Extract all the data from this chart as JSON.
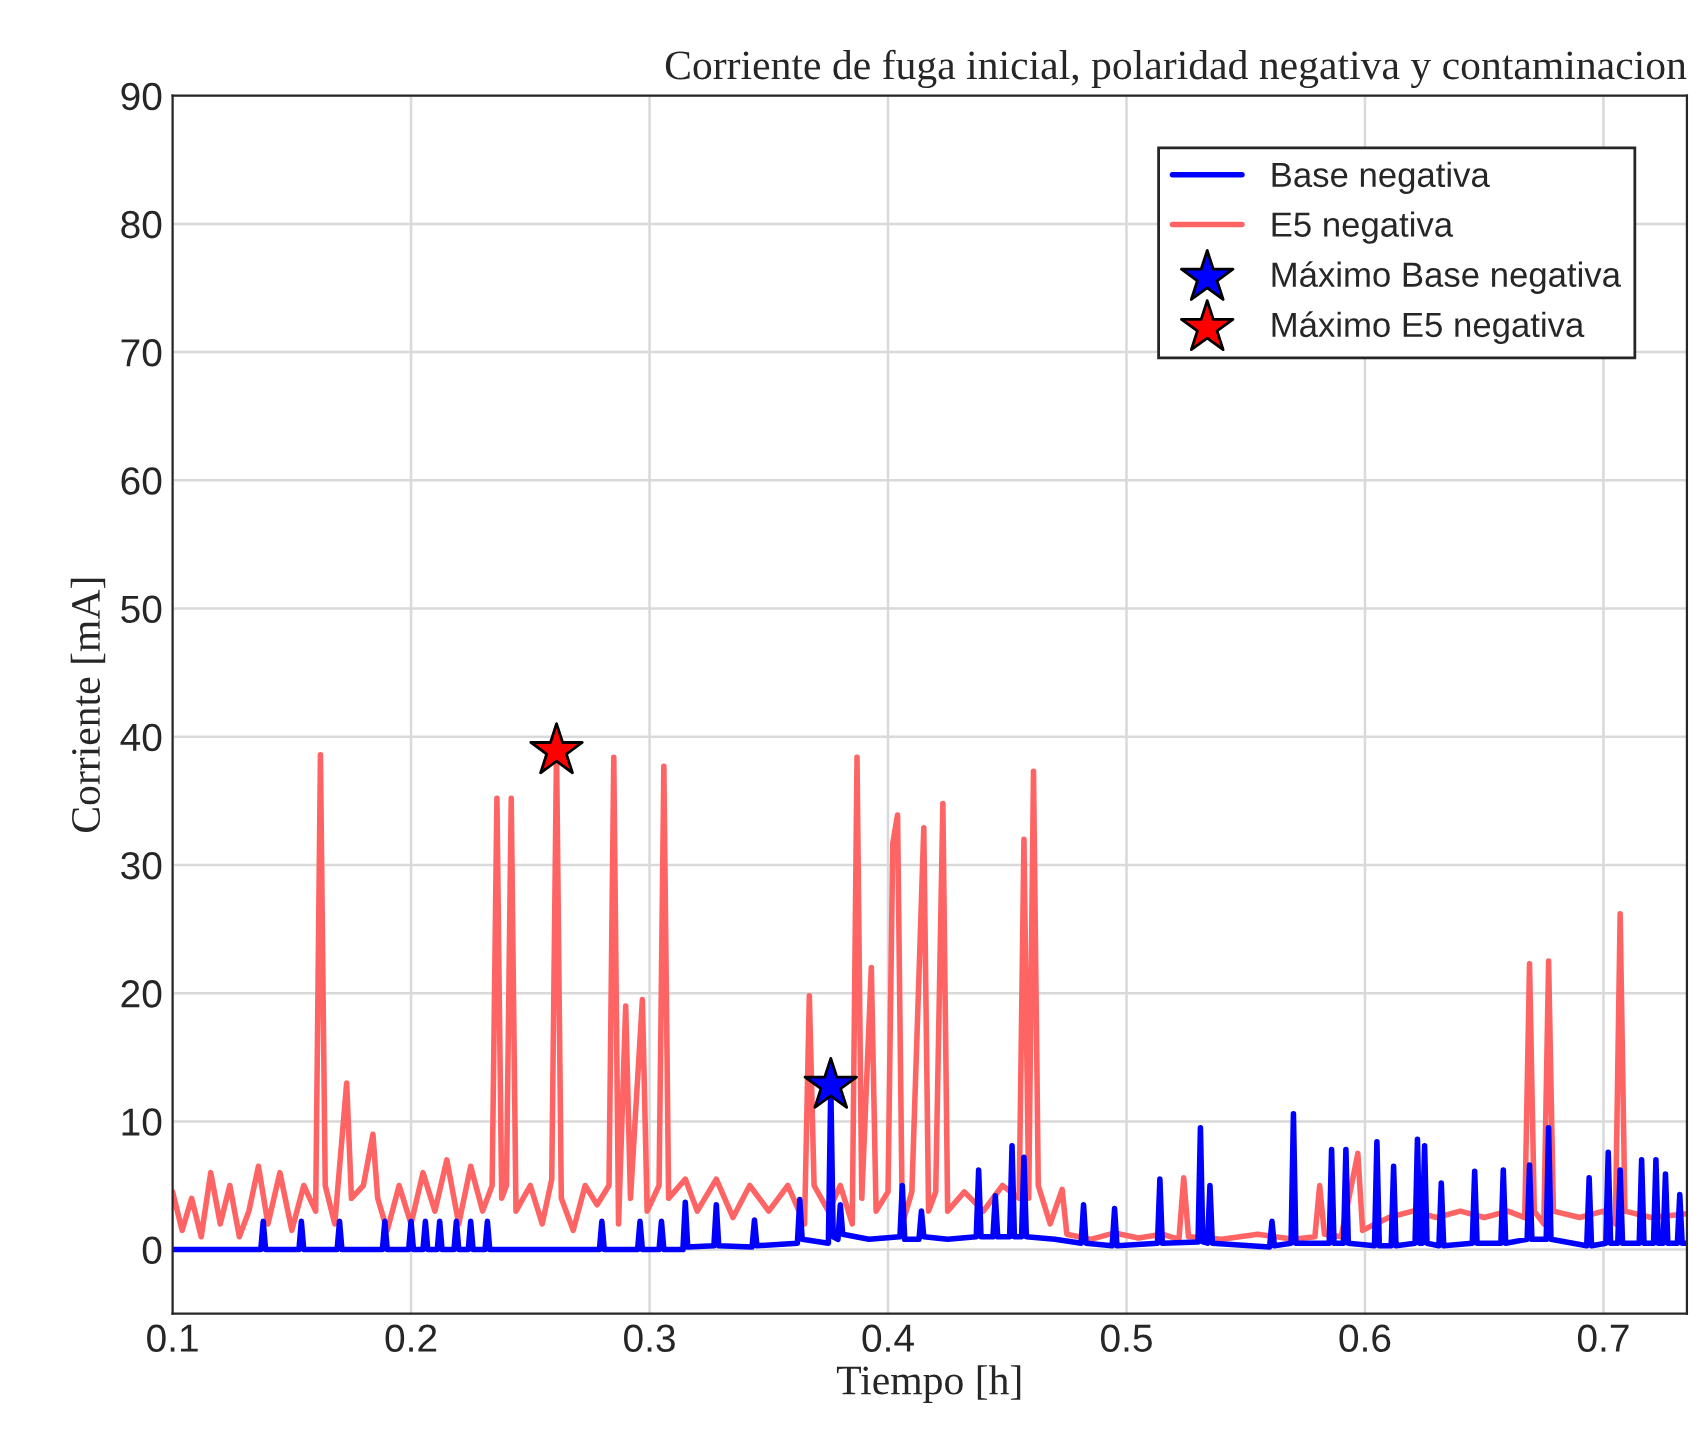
{
  "chart_data": {
    "type": "line",
    "title": "Corriente de fuga inicial, polaridad negativa y contaminacion",
    "xlabel": "Tiempo [h]",
    "ylabel": "Corriente [mA]",
    "xlim": [
      0.1,
      0.735
    ],
    "ylim": [
      -5,
      90
    ],
    "xticks": [
      0.1,
      0.2,
      0.3,
      0.4,
      0.5,
      0.6,
      0.7
    ],
    "yticks": [
      0,
      10,
      20,
      30,
      40,
      50,
      60,
      70,
      80,
      90
    ],
    "grid": true,
    "legend": "top right",
    "line_style": "solid",
    "series": [
      {
        "name": "Base negativa",
        "color": "#0000ff",
        "x": [
          0.1,
          0.137,
          0.138,
          0.139,
          0.153,
          0.154,
          0.155,
          0.169,
          0.17,
          0.171,
          0.188,
          0.189,
          0.19,
          0.199,
          0.2,
          0.201,
          0.205,
          0.206,
          0.207,
          0.211,
          0.212,
          0.213,
          0.218,
          0.219,
          0.22,
          0.224,
          0.225,
          0.226,
          0.231,
          0.232,
          0.233,
          0.279,
          0.28,
          0.281,
          0.295,
          0.296,
          0.297,
          0.304,
          0.305,
          0.306,
          0.314,
          0.315,
          0.316,
          0.327,
          0.328,
          0.329,
          0.343,
          0.344,
          0.345,
          0.362,
          0.363,
          0.364,
          0.375,
          0.376,
          0.377,
          0.379,
          0.38,
          0.381,
          0.392,
          0.405,
          0.406,
          0.407,
          0.413,
          0.414,
          0.415,
          0.425,
          0.437,
          0.438,
          0.439,
          0.444,
          0.445,
          0.446,
          0.451,
          0.452,
          0.453,
          0.456,
          0.457,
          0.458,
          0.47,
          0.481,
          0.482,
          0.483,
          0.494,
          0.495,
          0.496,
          0.513,
          0.514,
          0.515,
          0.53,
          0.531,
          0.532,
          0.534,
          0.535,
          0.536,
          0.56,
          0.561,
          0.562,
          0.569,
          0.57,
          0.571,
          0.585,
          0.586,
          0.587,
          0.591,
          0.592,
          0.593,
          0.604,
          0.605,
          0.606,
          0.611,
          0.612,
          0.613,
          0.621,
          0.622,
          0.623,
          0.624,
          0.625,
          0.626,
          0.631,
          0.632,
          0.633,
          0.645,
          0.646,
          0.647,
          0.657,
          0.658,
          0.659,
          0.668,
          0.669,
          0.67,
          0.676,
          0.677,
          0.678,
          0.693,
          0.694,
          0.695,
          0.701,
          0.702,
          0.703,
          0.706,
          0.707,
          0.708,
          0.715,
          0.716,
          0.717,
          0.721,
          0.722,
          0.723,
          0.725,
          0.726,
          0.727,
          0.731,
          0.732,
          0.733,
          0.735
        ],
        "values": [
          0,
          0,
          2.2,
          0,
          0,
          2.2,
          0,
          0,
          2.2,
          0,
          0,
          2.2,
          0,
          0,
          2.2,
          0,
          0,
          2.2,
          0,
          0,
          2.2,
          0,
          0,
          2.2,
          0,
          0,
          2.2,
          0,
          0,
          2.2,
          0,
          0,
          2.2,
          0,
          0,
          2.2,
          0,
          0,
          2.2,
          0,
          0,
          3.7,
          0.2,
          0.3,
          3.5,
          0.3,
          0.2,
          2.3,
          0.3,
          0.5,
          3.9,
          0.8,
          0.5,
          12.8,
          1,
          0.8,
          3.5,
          1.2,
          0.8,
          1,
          5.0,
          0.8,
          0.8,
          3,
          1,
          0.8,
          1,
          6.2,
          1,
          1,
          4.2,
          1,
          1,
          8.1,
          1,
          1,
          7.2,
          1,
          0.8,
          0.5,
          3.5,
          0.5,
          0.3,
          3.2,
          0.3,
          0.5,
          5.5,
          0.5,
          0.6,
          9.5,
          0.6,
          0.5,
          5.0,
          0.5,
          0.2,
          2.2,
          0.3,
          0.5,
          10.6,
          0.5,
          0.5,
          7.8,
          0.5,
          0.5,
          7.8,
          0.5,
          0.3,
          8.4,
          0.3,
          0.3,
          6.5,
          0.3,
          0.5,
          8.6,
          0.5,
          0.5,
          8.1,
          0.5,
          0.3,
          5.2,
          0.3,
          0.5,
          6.1,
          0.5,
          0.5,
          6.2,
          0.5,
          0.8,
          6.6,
          0.8,
          0.8,
          9.5,
          0.8,
          0.3,
          5.6,
          0.3,
          0.5,
          7.6,
          0.5,
          0.5,
          6.2,
          0.5,
          0.5,
          7.0,
          0.5,
          0.5,
          7.0,
          0.5,
          0.5,
          5.9,
          0.5,
          0.5,
          4.3,
          0.5,
          0.5
        ]
      },
      {
        "name": "E5 negativa",
        "color": "#ff6464",
        "x": [
          0.1,
          0.104,
          0.108,
          0.112,
          0.116,
          0.12,
          0.124,
          0.128,
          0.132,
          0.136,
          0.14,
          0.145,
          0.15,
          0.155,
          0.16,
          0.162,
          0.164,
          0.168,
          0.173,
          0.175,
          0.18,
          0.184,
          0.186,
          0.19,
          0.195,
          0.2,
          0.205,
          0.21,
          0.215,
          0.22,
          0.225,
          0.23,
          0.234,
          0.236,
          0.238,
          0.24,
          0.242,
          0.244,
          0.25,
          0.255,
          0.259,
          0.261,
          0.263,
          0.268,
          0.273,
          0.278,
          0.283,
          0.285,
          0.287,
          0.29,
          0.292,
          0.297,
          0.299,
          0.304,
          0.306,
          0.308,
          0.315,
          0.32,
          0.328,
          0.335,
          0.342,
          0.35,
          0.358,
          0.365,
          0.367,
          0.369,
          0.375,
          0.38,
          0.385,
          0.387,
          0.389,
          0.393,
          0.395,
          0.4,
          0.402,
          0.404,
          0.406,
          0.41,
          0.415,
          0.417,
          0.42,
          0.423,
          0.425,
          0.432,
          0.44,
          0.448,
          0.455,
          0.457,
          0.459,
          0.461,
          0.463,
          0.468,
          0.473,
          0.475,
          0.485,
          0.495,
          0.505,
          0.515,
          0.522,
          0.524,
          0.526,
          0.54,
          0.555,
          0.57,
          0.579,
          0.581,
          0.583,
          0.59,
          0.597,
          0.599,
          0.61,
          0.62,
          0.63,
          0.64,
          0.65,
          0.66,
          0.667,
          0.669,
          0.671,
          0.675,
          0.677,
          0.679,
          0.69,
          0.7,
          0.705,
          0.707,
          0.709,
          0.72,
          0.735
        ],
        "values": [
          4.5,
          1.5,
          4,
          1,
          6,
          2,
          5,
          1,
          3,
          6.5,
          2,
          6,
          1.5,
          5,
          3,
          38.6,
          5,
          2,
          13.0,
          4,
          5,
          9.0,
          4,
          1.5,
          5,
          2,
          6,
          3,
          7,
          2,
          6.5,
          3,
          5,
          35.2,
          4,
          5,
          35.2,
          3,
          5,
          2,
          5.5,
          38.9,
          4,
          1.5,
          5,
          3.5,
          5,
          38.4,
          2,
          19.0,
          4,
          19.5,
          3,
          5,
          37.7,
          4,
          5.5,
          3,
          5.5,
          2.5,
          5,
          3,
          5,
          2,
          19.8,
          5,
          3,
          5,
          2,
          38.4,
          4,
          22.0,
          3,
          4.5,
          31.7,
          33.9,
          2,
          4.5,
          32.9,
          3,
          4.5,
          34.8,
          3,
          4.5,
          3,
          5,
          4,
          32.0,
          4,
          37.3,
          5,
          2,
          4.7,
          1.2,
          0.8,
          1.3,
          0.9,
          1.2,
          0.8,
          5.6,
          1,
          0.8,
          1.2,
          0.8,
          1,
          5.0,
          1.2,
          1,
          7.5,
          1.5,
          2.5,
          3,
          2.5,
          3,
          2.5,
          3,
          2.5,
          22.3,
          3,
          2,
          22.5,
          3,
          2.5,
          3,
          2,
          26.2,
          3,
          2.5,
          2.8
        ]
      },
      {
        "name": "Máximo Base negativa",
        "type": "scatter",
        "marker": "star",
        "color": "#0000ff",
        "x": [
          0.376
        ],
        "values": [
          12.8
        ]
      },
      {
        "name": "Máximo E5 negativa",
        "type": "scatter",
        "marker": "star",
        "color": "#ff0000",
        "x": [
          0.261
        ],
        "values": [
          38.9
        ]
      }
    ]
  }
}
